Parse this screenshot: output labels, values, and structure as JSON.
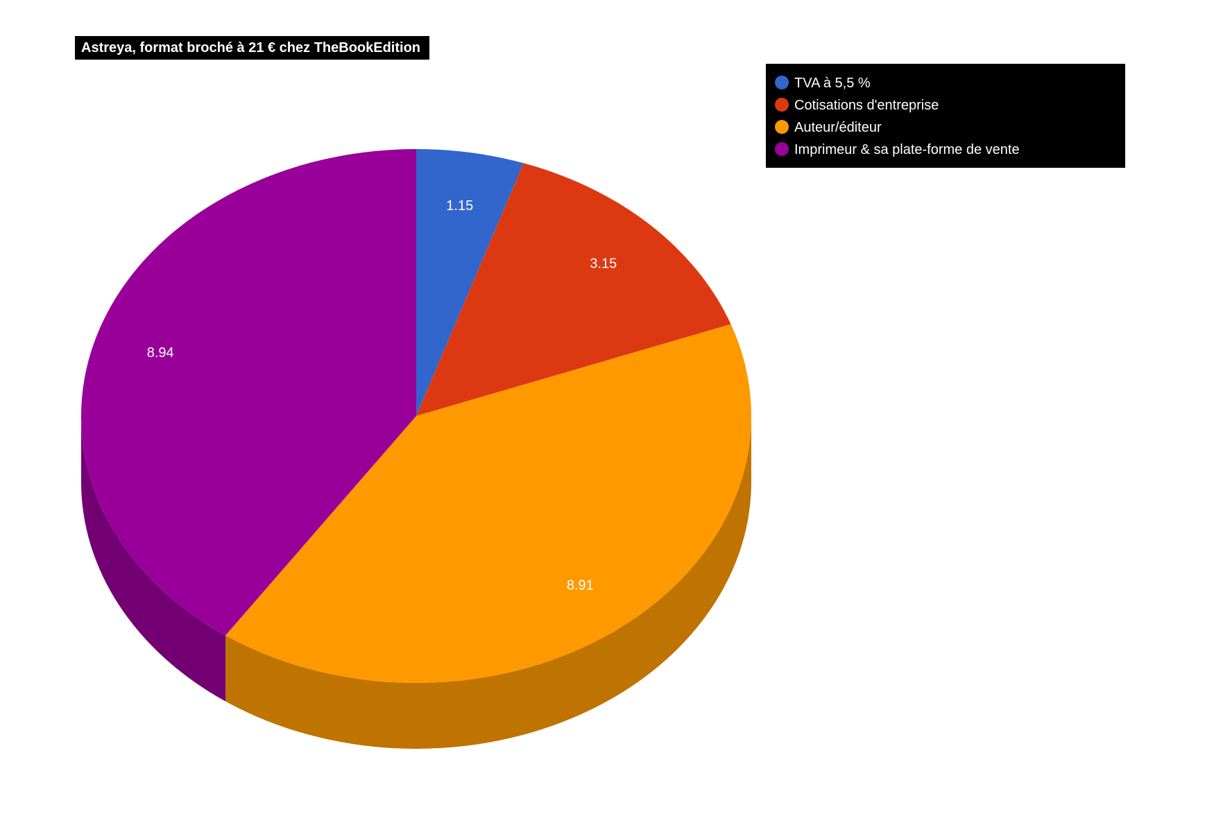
{
  "chart_data": {
    "type": "pie",
    "style": "3d",
    "title": "Astreya, format broché à 21 € chez TheBookEdition",
    "categories": [
      "TVA à 5,5 %",
      "Cotisations d'entreprise",
      "Auteur/éditeur",
      "Imprimeur & sa plate-forme de vente"
    ],
    "values": [
      1.15,
      3.15,
      8.91,
      8.94
    ],
    "value_labels": [
      "1.15",
      "3.15",
      "8.91",
      "8.94"
    ],
    "colors": [
      "#3366cc",
      "#dc3912",
      "#ff9900",
      "#990099"
    ],
    "side_colors": [
      "#264c99",
      "#a52a0d",
      "#bf7300",
      "#730073"
    ],
    "legend_position": "top-right",
    "legend_background": "#000000",
    "title_background": "#000000"
  }
}
